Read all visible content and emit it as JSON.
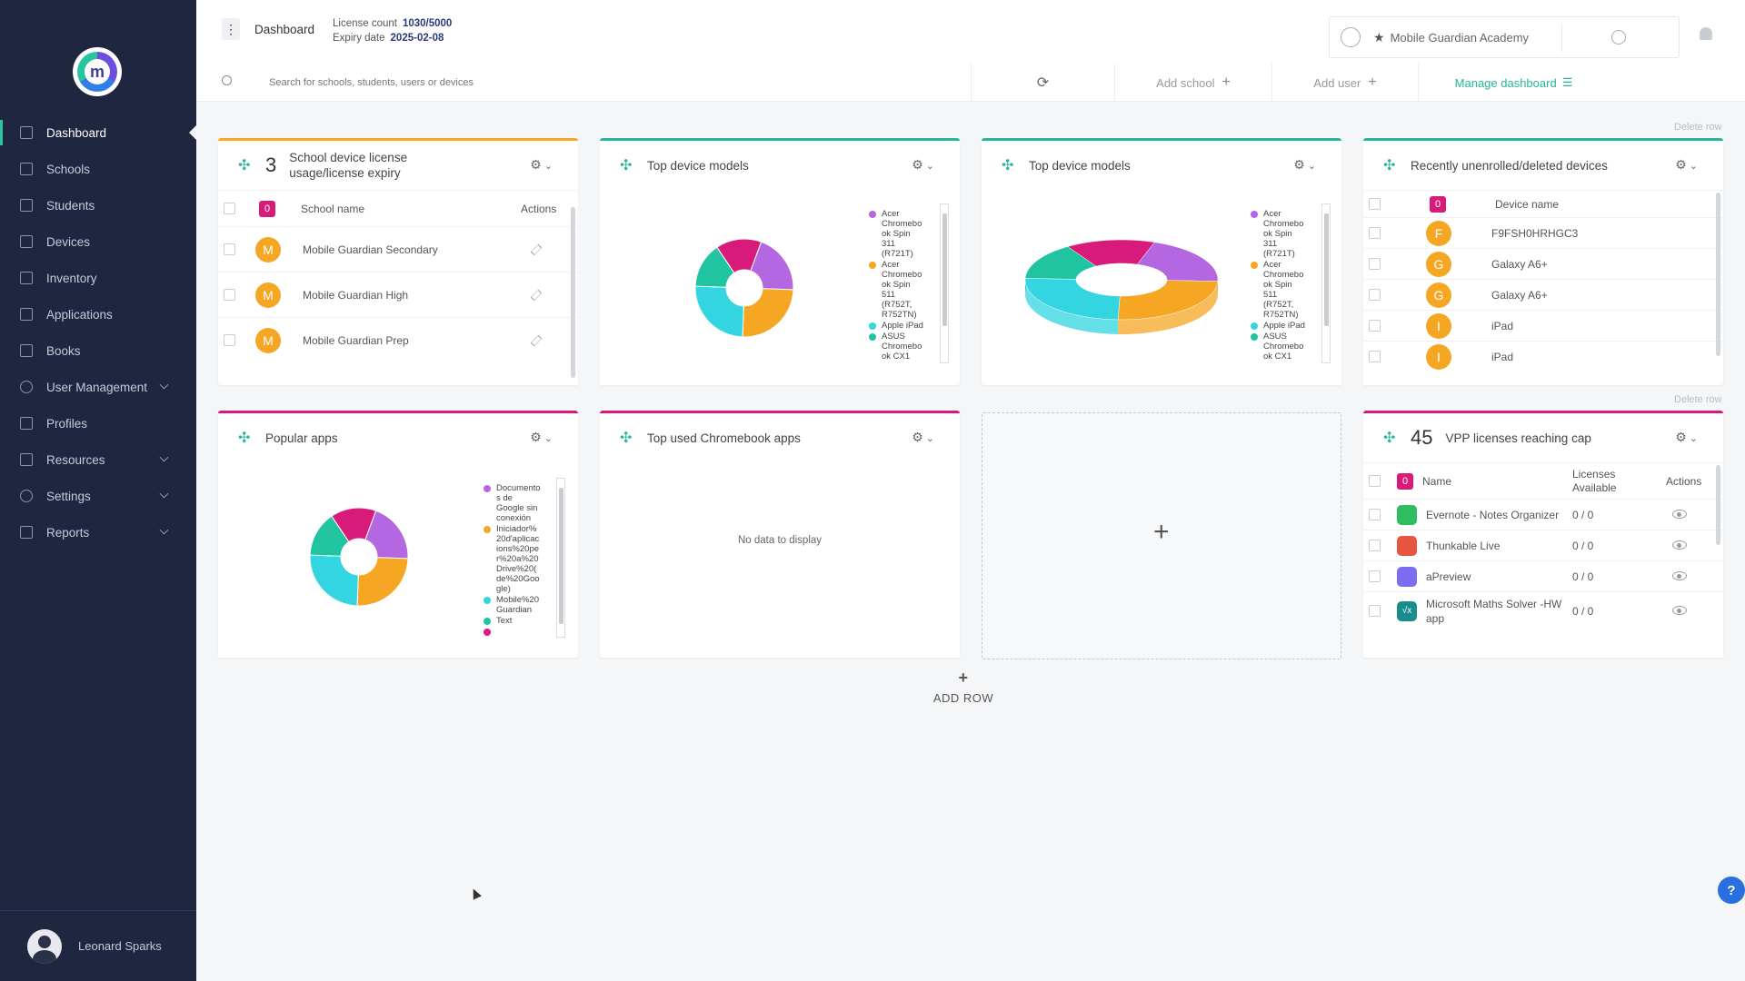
{
  "sidebar": {
    "items": [
      {
        "label": "Dashboard",
        "icon": "dashboard-icon",
        "active": true
      },
      {
        "label": "Schools",
        "icon": "school-icon"
      },
      {
        "label": "Students",
        "icon": "students-icon"
      },
      {
        "label": "Devices",
        "icon": "device-icon"
      },
      {
        "label": "Inventory",
        "icon": "inventory-icon"
      },
      {
        "label": "Applications",
        "icon": "apps-icon"
      },
      {
        "label": "Books",
        "icon": "book-icon"
      },
      {
        "label": "User Management",
        "icon": "users-icon",
        "expandable": true
      },
      {
        "label": "Profiles",
        "icon": "profile-icon"
      },
      {
        "label": "Resources",
        "icon": "resources-icon",
        "expandable": true
      },
      {
        "label": "Settings",
        "icon": "gear-icon",
        "expandable": true
      },
      {
        "label": "Reports",
        "icon": "report-icon",
        "expandable": true
      }
    ],
    "user": "Leonard Sparks"
  },
  "header": {
    "title": "Dashboard",
    "license_label": "License count",
    "license_value": "1030/5000",
    "expiry_label": "Expiry date",
    "expiry_value": "2025-02-08",
    "school": "Mobile Guardian Academy",
    "search_placeholder": "Search for schools, students, users or devices",
    "add_school": "Add school",
    "add_user": "Add user",
    "manage_dashboard": "Manage dashboard"
  },
  "delete_row": "Delete row",
  "cards": {
    "license": {
      "count": "3",
      "title": "School device license usage/license expiry",
      "badge": "0",
      "col_name": "School name",
      "col_actions": "Actions",
      "rows": [
        {
          "initial": "M",
          "name": "Mobile Guardian Secondary"
        },
        {
          "initial": "M",
          "name": "Mobile Guardian High"
        },
        {
          "initial": "M",
          "name": "Mobile Guardian Prep"
        }
      ]
    },
    "top_models_1": {
      "title": "Top device models",
      "legend": [
        "Acer Chromebo ok Spin 311 (R721T)",
        "Acer Chromebo ok Spin 511 (R752T, R752TN)",
        "Apple iPad",
        "ASUS Chromebo ok CX1"
      ]
    },
    "top_models_2": {
      "title": "Top device models",
      "legend": [
        "Acer Chromebo ok Spin 311 (R721T)",
        "Acer Chromebo ok Spin 511 (R752T, R752TN)",
        "Apple iPad",
        "ASUS Chromebo ok CX1"
      ]
    },
    "unenrolled": {
      "title": "Recently unenrolled/deleted devices",
      "badge": "0",
      "col_name": "Device name",
      "rows": [
        {
          "initial": "F",
          "name": "F9FSH0HRHGC3"
        },
        {
          "initial": "G",
          "name": "Galaxy A6+"
        },
        {
          "initial": "G",
          "name": "Galaxy A6+"
        },
        {
          "initial": "I",
          "name": "iPad"
        },
        {
          "initial": "I",
          "name": "iPad"
        }
      ]
    },
    "popular_apps": {
      "title": "Popular apps",
      "legend": [
        "Documento s de Google sin conexión",
        "Iniciador% 20d'aplicac ions%20pe r%20a%20 Drive%20( de%20Goo gle)",
        "Mobile%20 Guardian",
        "Text"
      ]
    },
    "chromebook_apps": {
      "title": "Top used Chromebook apps",
      "empty": "No data to display"
    },
    "vpp": {
      "count": "45",
      "title": "VPP licenses reaching cap",
      "badge": "0",
      "col_name": "Name",
      "col_licenses": "Licenses Available",
      "col_actions": "Actions",
      "rows": [
        {
          "name": "Evernote - Notes Organizer",
          "licenses": "0 / 0",
          "icon": "evernote-icon"
        },
        {
          "name": "Thunkable Live",
          "licenses": "0 / 0",
          "icon": "thunkable-icon"
        },
        {
          "name": "aPreview",
          "licenses": "0 / 0",
          "icon": "apreview-icon"
        },
        {
          "name": "Microsoft Maths Solver -HW app",
          "licenses": "0 / 0",
          "icon": "math-solver-icon"
        }
      ]
    }
  },
  "add_row": "ADD ROW",
  "colors": {
    "sidebar_bg": "#1f2640",
    "accent": "#27b59c",
    "orange": "#f5a623",
    "pink": "#d81b7a",
    "purple": "#b467e0",
    "teal": "#21c4a0",
    "cyan": "#33d6e0"
  },
  "donut_slices": [
    {
      "label": "Acer Chromebo ok Spin 311 (R721T)",
      "value": 20,
      "color": "#b467e0"
    },
    {
      "label": "Acer Chromebo ok Spin 511 (R752T, R752TN)",
      "value": 25,
      "color": "#f5a623"
    },
    {
      "label": "Apple iPad",
      "value": 25,
      "color": "#33d6e0"
    },
    {
      "label": "ASUS Chromebo ok CX1",
      "value": 15,
      "color": "#21c4a0"
    },
    {
      "label": "",
      "value": 15,
      "color": "#d81b7a"
    }
  ]
}
